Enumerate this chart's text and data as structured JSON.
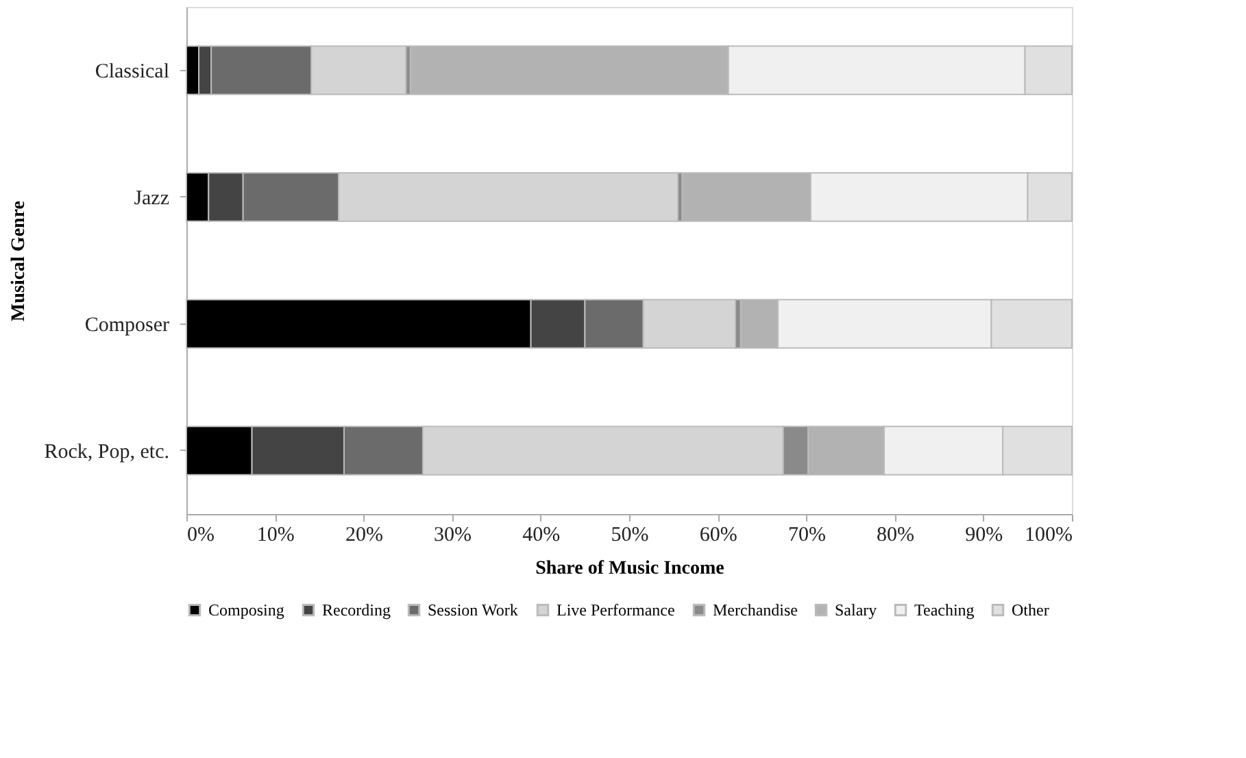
{
  "chart_data": {
    "type": "bar",
    "orientation": "horizontal",
    "stacked": true,
    "categories": [
      "Classical",
      "Jazz",
      "Composer",
      "Rock, Pop, etc."
    ],
    "xlabel": "Share of Music Income",
    "ylabel": "Musical Genre",
    "xlim": [
      0,
      100
    ],
    "xticks": [
      {
        "value": 0,
        "label": "0%"
      },
      {
        "value": 10,
        "label": "10%"
      },
      {
        "value": 20,
        "label": "20%"
      },
      {
        "value": 30,
        "label": "30%"
      },
      {
        "value": 40,
        "label": "40%"
      },
      {
        "value": 50,
        "label": "50%"
      },
      {
        "value": 60,
        "label": "60%"
      },
      {
        "value": 70,
        "label": "70%"
      },
      {
        "value": 80,
        "label": "80%"
      },
      {
        "value": 90,
        "label": "90%"
      },
      {
        "value": 100,
        "label": "100%"
      }
    ],
    "grid": false,
    "legend": "bottom",
    "series": [
      {
        "name": "Composing",
        "color": "#000000",
        "values": [
          1.4,
          2.5,
          38.9,
          7.4
        ]
      },
      {
        "name": "Recording",
        "color": "#444444",
        "values": [
          1.4,
          3.9,
          6.1,
          10.4
        ]
      },
      {
        "name": "Session Work",
        "color": "#6b6b6b",
        "values": [
          11.3,
          10.8,
          6.6,
          8.9
        ]
      },
      {
        "name": "Live Performance",
        "color": "#d4d4d4",
        "values": [
          10.7,
          38.3,
          10.4,
          40.7
        ]
      },
      {
        "name": "Merchandise",
        "color": "#8a8a8a",
        "values": [
          0.5,
          0.5,
          0.6,
          2.8
        ]
      },
      {
        "name": "Salary",
        "color": "#b2b2b2",
        "values": [
          35.9,
          14.5,
          4.2,
          8.6
        ]
      },
      {
        "name": "Teaching",
        "color": "#f0f0f0",
        "values": [
          33.5,
          24.5,
          24.1,
          13.4
        ]
      },
      {
        "name": "Other",
        "color": "#e0e0e0",
        "values": [
          5.3,
          5.0,
          9.1,
          7.8
        ]
      }
    ]
  }
}
